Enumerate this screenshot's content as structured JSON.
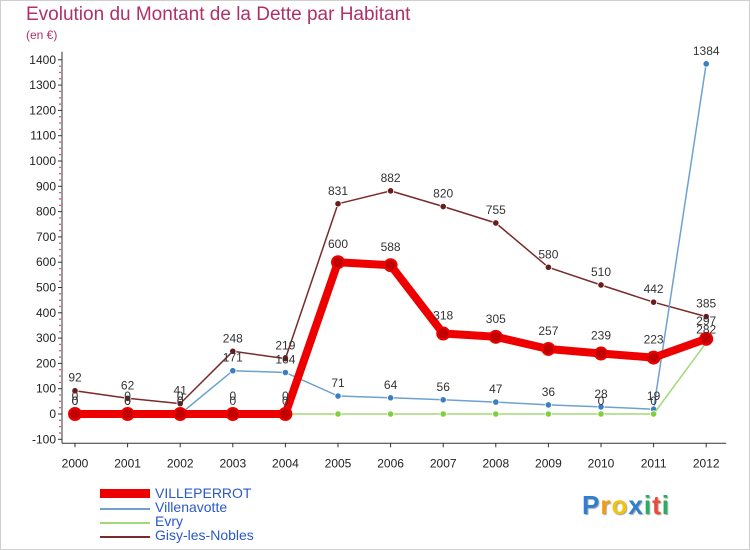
{
  "header": {
    "title": "Evolution du Montant de la Dette par Habitant",
    "subtitle": "(en €)"
  },
  "logo": {
    "text": "Proxiti",
    "letters": [
      "P",
      "r",
      "o",
      "x",
      "i",
      "t",
      "i"
    ],
    "colors": [
      "#2e7fd1",
      "#f39c12",
      "#f1c40f",
      "#2e7fd1",
      "#27ae60",
      "#e74c3c",
      "#27ae60"
    ]
  },
  "chart_data": {
    "type": "line",
    "title": "Evolution du Montant de la Dette par Habitant",
    "subtitle": "(en €)",
    "x": [
      "2000",
      "2001",
      "2002",
      "2003",
      "2004",
      "2005",
      "2006",
      "2007",
      "2008",
      "2009",
      "2010",
      "2011",
      "2012"
    ],
    "y_ticks": [
      "-100",
      "0",
      "100",
      "200",
      "300",
      "400",
      "500",
      "600",
      "700",
      "800",
      "900",
      "1000",
      "1100",
      "1200",
      "1300",
      "1400"
    ],
    "ylim": [
      -100,
      1400
    ],
    "grid": false,
    "legend_position": "bottom-left",
    "series": [
      {
        "name": "VILLEPERROT",
        "color": "#ee0000",
        "values": [
          0,
          0,
          0,
          0,
          0,
          600,
          588,
          318,
          305,
          257,
          239,
          223,
          297
        ],
        "labels": [
          "0",
          "0",
          "0",
          "0",
          "0",
          "600",
          "588",
          "318",
          "305",
          "257",
          "239",
          "223",
          "297"
        ]
      },
      {
        "name": "Villenavotte",
        "color": "#6ea1cf",
        "values": [
          0,
          0,
          0,
          171,
          164,
          71,
          64,
          56,
          47,
          36,
          28,
          19,
          1384
        ],
        "labels": [
          "0",
          "0",
          "0",
          "171",
          "164",
          "71",
          "64",
          "56",
          "47",
          "36",
          "28",
          "19",
          "1384"
        ]
      },
      {
        "name": "Evry",
        "color": "#a3d977",
        "values": [
          0,
          0,
          0,
          0,
          0,
          0,
          0,
          0,
          0,
          0,
          0,
          0,
          282
        ],
        "labels": [
          "0",
          "0",
          "0",
          "0",
          "0",
          "",
          "",
          "",
          "",
          "",
          "0",
          "0",
          "282"
        ]
      },
      {
        "name": "Gisy-les-Nobles",
        "color": "#7a2a2a",
        "values": [
          92,
          62,
          41,
          248,
          219,
          831,
          882,
          820,
          755,
          580,
          510,
          442,
          385
        ],
        "labels": [
          "92",
          "62",
          "41",
          "248",
          "219",
          "831",
          "882",
          "820",
          "755",
          "580",
          "510",
          "442",
          "385"
        ]
      }
    ]
  }
}
